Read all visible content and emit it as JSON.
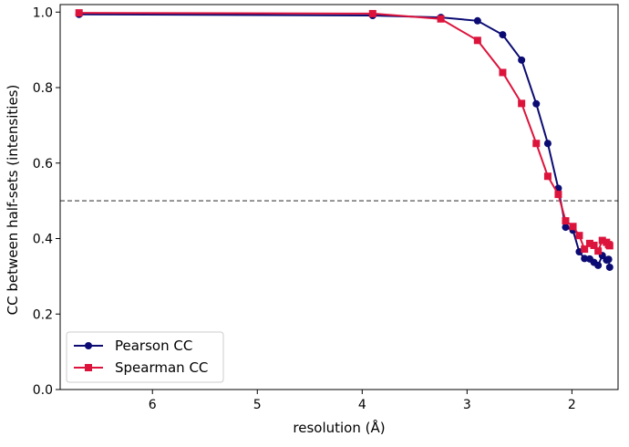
{
  "chart_data": {
    "type": "line",
    "xlabel": "resolution (Å)",
    "ylabel": "CC between half-sets (intensities)",
    "x_ticks": [
      {
        "value": 6,
        "label": "6"
      },
      {
        "value": 5,
        "label": "5"
      },
      {
        "value": 4,
        "label": "4"
      },
      {
        "value": 3,
        "label": "3"
      },
      {
        "value": 2,
        "label": "2"
      }
    ],
    "y_ticks": [
      {
        "value": 0.0,
        "label": "0.0"
      },
      {
        "value": 0.2,
        "label": "0.2"
      },
      {
        "value": 0.4,
        "label": "0.4"
      },
      {
        "value": 0.6,
        "label": "0.6"
      },
      {
        "value": 0.8,
        "label": "0.8"
      },
      {
        "value": 1.0,
        "label": "1.0"
      }
    ],
    "xlim": [
      6.88,
      1.56
    ],
    "ylim": [
      0.0,
      1.02
    ],
    "reference_line": {
      "y": 0.5,
      "style": "dashed",
      "color": "#707070"
    },
    "legend": {
      "placement": "lower-left"
    },
    "grid": false,
    "series": [
      {
        "name": "Pearson CC",
        "color": "#0b0b73",
        "marker": "circle",
        "points": [
          {
            "x": 6.7,
            "y": 0.994
          },
          {
            "x": 3.9,
            "y": 0.991
          },
          {
            "x": 3.25,
            "y": 0.986
          },
          {
            "x": 2.9,
            "y": 0.977
          },
          {
            "x": 2.66,
            "y": 0.94
          },
          {
            "x": 2.48,
            "y": 0.873
          },
          {
            "x": 2.34,
            "y": 0.757
          },
          {
            "x": 2.23,
            "y": 0.652
          },
          {
            "x": 2.13,
            "y": 0.533
          },
          {
            "x": 2.06,
            "y": 0.43
          },
          {
            "x": 1.99,
            "y": 0.422
          },
          {
            "x": 1.93,
            "y": 0.365
          },
          {
            "x": 1.88,
            "y": 0.347
          },
          {
            "x": 1.83,
            "y": 0.346
          },
          {
            "x": 1.79,
            "y": 0.337
          },
          {
            "x": 1.75,
            "y": 0.329
          },
          {
            "x": 1.71,
            "y": 0.355
          },
          {
            "x": 1.67,
            "y": 0.343
          },
          {
            "x": 1.65,
            "y": 0.345
          },
          {
            "x": 1.64,
            "y": 0.324
          }
        ]
      },
      {
        "name": "Spearman CC",
        "color": "#dc143c",
        "marker": "square",
        "points": [
          {
            "x": 6.7,
            "y": 0.998
          },
          {
            "x": 3.9,
            "y": 0.996
          },
          {
            "x": 3.25,
            "y": 0.982
          },
          {
            "x": 2.9,
            "y": 0.925
          },
          {
            "x": 2.66,
            "y": 0.84
          },
          {
            "x": 2.48,
            "y": 0.758
          },
          {
            "x": 2.34,
            "y": 0.652
          },
          {
            "x": 2.23,
            "y": 0.565
          },
          {
            "x": 2.13,
            "y": 0.517
          },
          {
            "x": 2.06,
            "y": 0.447
          },
          {
            "x": 1.99,
            "y": 0.432
          },
          {
            "x": 1.93,
            "y": 0.408
          },
          {
            "x": 1.88,
            "y": 0.372
          },
          {
            "x": 1.83,
            "y": 0.387
          },
          {
            "x": 1.79,
            "y": 0.382
          },
          {
            "x": 1.75,
            "y": 0.367
          },
          {
            "x": 1.71,
            "y": 0.395
          },
          {
            "x": 1.67,
            "y": 0.39
          },
          {
            "x": 1.65,
            "y": 0.384
          },
          {
            "x": 1.64,
            "y": 0.381
          }
        ]
      }
    ]
  }
}
